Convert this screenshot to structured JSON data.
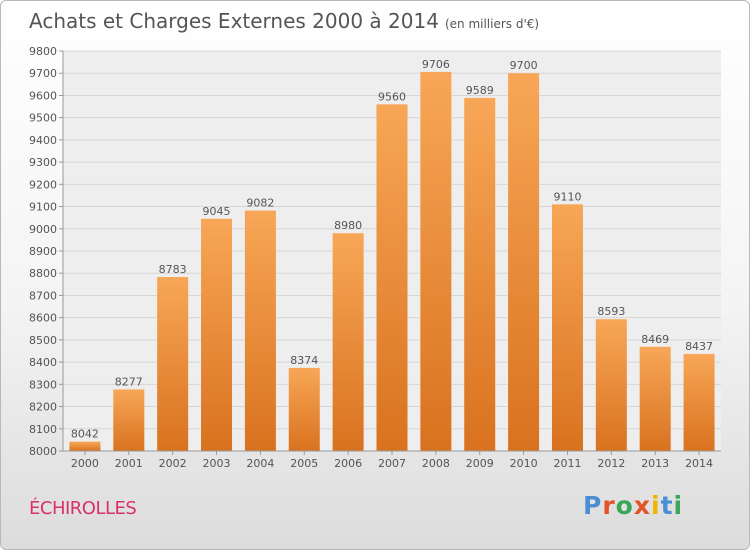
{
  "title": "Achats et Charges Externes 2000 à 2014",
  "unit": "(en milliers d'€)",
  "city": "ÉCHIROLLES",
  "logo": {
    "text": "Proxiti",
    "letter_colors": [
      "#4a8fd6",
      "#e25327",
      "#3aa657",
      "#e25327",
      "#f2b400",
      "#4a8fd6",
      "#3aa657"
    ]
  },
  "colors": {
    "bar_top": "#f7a757",
    "bar_bottom": "#d9721f",
    "grid": "#d6d6d6",
    "text": "#555555",
    "plot_bg": "#eeeeee"
  },
  "chart_data": {
    "type": "bar",
    "categories": [
      "2000",
      "2001",
      "2002",
      "2003",
      "2004",
      "2005",
      "2006",
      "2007",
      "2008",
      "2009",
      "2010",
      "2011",
      "2012",
      "2013",
      "2014"
    ],
    "values": [
      8042,
      8277,
      8783,
      9045,
      9082,
      8374,
      8980,
      9560,
      9706,
      9589,
      9700,
      9110,
      8593,
      8469,
      8437
    ],
    "ylim": [
      8000,
      9800
    ],
    "yticks": [
      8000,
      8100,
      8200,
      8300,
      8400,
      8500,
      8600,
      8700,
      8800,
      8900,
      9000,
      9100,
      9200,
      9300,
      9400,
      9500,
      9600,
      9700,
      9800
    ],
    "grid": true,
    "data_labels": true
  }
}
